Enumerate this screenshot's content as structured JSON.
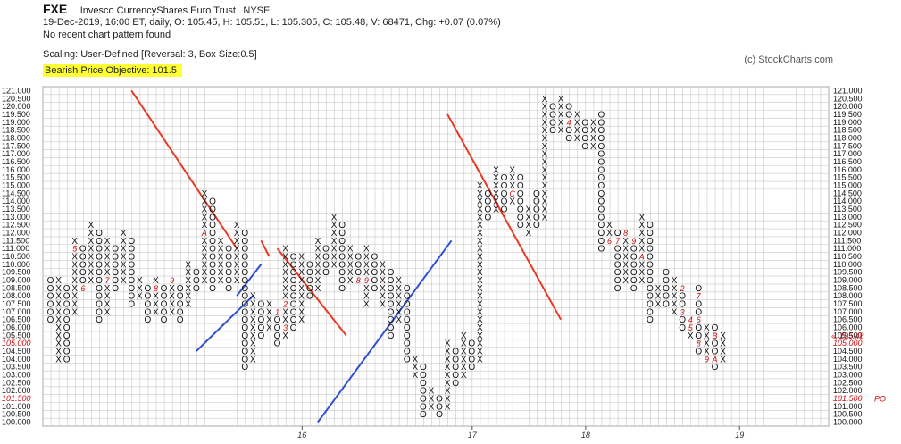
{
  "header": {
    "symbol": "FXE",
    "company": "Invesco CurrencyShares Euro Trust",
    "exchange": "NYSE",
    "quote_line": "19-Dec-2019, 16:00 ET, daily, O: 105.45, H: 105.51, L: 105.305, C: 105.48, V: 68471, Chg: +0.07 (0.07%)",
    "pattern_line": "No recent chart pattern found",
    "scaling_line": "Scaling: User-Defined [Reversal: 3, Box Size:0.5]",
    "objective_line": "Bearish Price Objective: 101.5",
    "copyright": "(c) StockCharts.com"
  },
  "chart_data": {
    "type": "point-and-figure",
    "box_size": 0.5,
    "reversal": 3,
    "ylim": [
      100.0,
      121.0
    ],
    "y_ticks": [
      "121.000",
      "120.500",
      "120.000",
      "119.500",
      "119.000",
      "118.500",
      "118.000",
      "117.500",
      "117.000",
      "116.500",
      "116.000",
      "115.500",
      "115.000",
      "114.500",
      "114.000",
      "113.500",
      "113.000",
      "112.500",
      "112.000",
      "111.500",
      "111.000",
      "110.500",
      "110.000",
      "109.500",
      "109.000",
      "108.500",
      "108.000",
      "107.500",
      "107.000",
      "106.500",
      "106.000",
      "105.500",
      "105.000",
      "104.500",
      "104.000",
      "103.500",
      "103.000",
      "102.500",
      "102.000",
      "101.500",
      "101.000",
      "100.500",
      "100.000"
    ],
    "highlight_ticks": [
      "105.000",
      "101.500"
    ],
    "x_labels": [
      {
        "label": "16",
        "col": 27
      },
      {
        "label": "17",
        "col": 48
      },
      {
        "label": "18",
        "col": 62
      },
      {
        "label": "19",
        "col": 81
      }
    ],
    "columns": [
      {
        "t": "O",
        "high": 109.0,
        "low": 106.5
      },
      {
        "t": "X",
        "high": 109.0,
        "low": 104.0
      },
      {
        "t": "O",
        "high": 108.5,
        "low": 104.0
      },
      {
        "t": "X",
        "high": 111.5,
        "low": 107.0
      },
      {
        "t": "O",
        "high": 111.0,
        "low": 108.5
      },
      {
        "t": "X",
        "high": 112.5,
        "low": 109.0
      },
      {
        "t": "O",
        "high": 112.0,
        "low": 106.5
      },
      {
        "t": "X",
        "high": 111.5,
        "low": 107.0
      },
      {
        "t": "O",
        "high": 111.0,
        "low": 108.5
      },
      {
        "t": "X",
        "high": 112.0,
        "low": 109.0
      },
      {
        "t": "O",
        "high": 111.5,
        "low": 107.5
      },
      {
        "t": "X",
        "high": 109.0,
        "low": 108.0
      },
      {
        "t": "O",
        "high": 108.5,
        "low": 106.5
      },
      {
        "t": "X",
        "high": 109.0,
        "low": 107.0
      },
      {
        "t": "O",
        "high": 108.5,
        "low": 106.5
      },
      {
        "t": "X",
        "high": 109.0,
        "low": 107.0
      },
      {
        "t": "O",
        "high": 108.5,
        "low": 106.5
      },
      {
        "t": "X",
        "high": 110.0,
        "low": 107.5
      },
      {
        "t": "O",
        "high": 109.5,
        "low": 108.5
      },
      {
        "t": "X",
        "high": 114.5,
        "low": 109.0
      },
      {
        "t": "O",
        "high": 114.0,
        "low": 108.5
      },
      {
        "t": "X",
        "high": 111.5,
        "low": 109.0
      },
      {
        "t": "O",
        "high": 111.0,
        "low": 108.5
      },
      {
        "t": "X",
        "high": 112.5,
        "low": 109.0
      },
      {
        "t": "O",
        "high": 112.0,
        "low": 103.5
      },
      {
        "t": "X",
        "high": 108.0,
        "low": 104.0
      },
      {
        "t": "O",
        "high": 107.5,
        "low": 105.5
      },
      {
        "t": "X",
        "high": 107.5,
        "low": 106.0
      },
      {
        "t": "O",
        "high": 107.0,
        "low": 105.0
      },
      {
        "t": "X",
        "high": 111.0,
        "low": 105.5
      },
      {
        "t": "O",
        "high": 110.5,
        "low": 106.0
      },
      {
        "t": "X",
        "high": 110.5,
        "low": 106.5
      },
      {
        "t": "O",
        "high": 110.0,
        "low": 108.0
      },
      {
        "t": "X",
        "high": 111.5,
        "low": 108.5
      },
      {
        "t": "O",
        "high": 111.0,
        "low": 109.5
      },
      {
        "t": "X",
        "high": 113.0,
        "low": 110.0
      },
      {
        "t": "O",
        "high": 112.5,
        "low": 108.5
      },
      {
        "t": "X",
        "high": 111.0,
        "low": 109.0
      },
      {
        "t": "O",
        "high": 110.5,
        "low": 109.0
      },
      {
        "t": "X",
        "high": 111.0,
        "low": 107.5
      },
      {
        "t": "O",
        "high": 110.5,
        "low": 108.5
      },
      {
        "t": "X",
        "high": 110.0,
        "low": 107.5
      },
      {
        "t": "O",
        "high": 109.5,
        "low": 105.5
      },
      {
        "t": "X",
        "high": 109.0,
        "low": 106.5
      },
      {
        "t": "O",
        "high": 108.5,
        "low": 104.0
      },
      {
        "t": "X",
        "high": 104.0,
        "low": 103.0
      },
      {
        "t": "O",
        "high": 103.5,
        "low": 100.5
      },
      {
        "t": "X",
        "high": 102.0,
        "low": 101.0
      },
      {
        "t": "O",
        "high": 101.5,
        "low": 100.5
      },
      {
        "t": "X",
        "high": 105.0,
        "low": 101.0
      },
      {
        "t": "O",
        "high": 104.5,
        "low": 102.5
      },
      {
        "t": "X",
        "high": 105.5,
        "low": 103.0
      },
      {
        "t": "O",
        "high": 105.0,
        "low": 103.5
      },
      {
        "t": "X",
        "high": 115.0,
        "low": 104.0
      },
      {
        "t": "O",
        "high": 114.5,
        "low": 113.0
      },
      {
        "t": "X",
        "high": 116.0,
        "low": 113.5
      },
      {
        "t": "O",
        "high": 115.5,
        "low": 113.5
      },
      {
        "t": "X",
        "high": 116.0,
        "low": 114.0
      },
      {
        "t": "O",
        "high": 115.5,
        "low": 112.5
      },
      {
        "t": "X",
        "high": 113.5,
        "low": 112.0
      },
      {
        "t": "O",
        "high": 114.5,
        "low": 112.5
      },
      {
        "t": "X",
        "high": 120.5,
        "low": 113.0
      },
      {
        "t": "O",
        "high": 120.0,
        "low": 118.5
      },
      {
        "t": "X",
        "high": 120.5,
        "low": 118.5
      },
      {
        "t": "O",
        "high": 120.0,
        "low": 118.0
      },
      {
        "t": "X",
        "high": 119.5,
        "low": 118.0
      },
      {
        "t": "O",
        "high": 119.0,
        "low": 117.5
      },
      {
        "t": "X",
        "high": 119.0,
        "low": 117.5
      },
      {
        "t": "O",
        "high": 119.5,
        "low": 111.0
      },
      {
        "t": "X",
        "high": 112.5,
        "low": 111.5
      },
      {
        "t": "O",
        "high": 112.0,
        "low": 108.5
      },
      {
        "t": "X",
        "high": 112.0,
        "low": 109.0
      },
      {
        "t": "O",
        "high": 111.5,
        "low": 108.5
      },
      {
        "t": "X",
        "high": 113.0,
        "low": 109.0
      },
      {
        "t": "O",
        "high": 112.5,
        "low": 106.5
      },
      {
        "t": "X",
        "high": 108.5,
        "low": 107.5
      },
      {
        "t": "O",
        "high": 109.5,
        "low": 107.5
      },
      {
        "t": "X",
        "high": 109.0,
        "low": 107.0
      },
      {
        "t": "O",
        "high": 108.5,
        "low": 106.0
      },
      {
        "t": "X",
        "high": 106.5,
        "low": 105.5
      },
      {
        "t": "O",
        "high": 108.5,
        "low": 104.5
      },
      {
        "t": "X",
        "high": 106.0,
        "low": 104.0
      },
      {
        "t": "O",
        "high": 106.0,
        "low": 103.5
      },
      {
        "t": "X",
        "high": 105.5,
        "low": 104.0
      }
    ],
    "month_markers": [
      {
        "t": "4",
        "col": 0,
        "price": 106.0
      },
      {
        "t": "5",
        "col": 3,
        "price": 111.0
      },
      {
        "t": "6",
        "col": 4,
        "price": 108.5
      },
      {
        "t": "7",
        "col": 7,
        "price": 109.0
      },
      {
        "t": "8",
        "col": 13,
        "price": 108.5
      },
      {
        "t": "9",
        "col": 15,
        "price": 109.0
      },
      {
        "t": "A",
        "col": 19,
        "price": 112.0
      },
      {
        "t": "B",
        "col": 20,
        "price": 106.5
      },
      {
        "t": "C",
        "col": 20,
        "price": 104.0
      },
      {
        "t": "1",
        "col": 28,
        "price": 107.0
      },
      {
        "t": "2",
        "col": 29,
        "price": 107.5
      },
      {
        "t": "3",
        "col": 29,
        "price": 106.0
      },
      {
        "t": "4",
        "col": 31,
        "price": 111.5
      },
      {
        "t": "5",
        "col": 33,
        "price": 112.0
      },
      {
        "t": "6",
        "col": 34,
        "price": 109.0
      },
      {
        "t": "7",
        "col": 37,
        "price": 107.0
      },
      {
        "t": "8",
        "col": 38,
        "price": 109.0
      },
      {
        "t": "9",
        "col": 39,
        "price": 109.0
      },
      {
        "t": "A",
        "col": 40,
        "price": 108.0
      },
      {
        "t": "B",
        "col": 41,
        "price": 106.5
      },
      {
        "t": "C",
        "col": 43,
        "price": 103.0
      },
      {
        "t": "1",
        "col": 44,
        "price": 102.0
      },
      {
        "t": "2",
        "col": 45,
        "price": 105.0
      },
      {
        "t": "3",
        "col": 46,
        "price": 104.0
      },
      {
        "t": "4",
        "col": 47,
        "price": 103.5
      },
      {
        "t": "5",
        "col": 48,
        "price": 106.5
      },
      {
        "t": "6",
        "col": 48,
        "price": 109.5
      },
      {
        "t": "7",
        "col": 48,
        "price": 110.5
      },
      {
        "t": "8",
        "col": 48,
        "price": 115.0
      },
      {
        "t": "9",
        "col": 52,
        "price": 115.0
      },
      {
        "t": "A",
        "col": 55,
        "price": 113.0
      },
      {
        "t": "B",
        "col": 57,
        "price": 112.5
      },
      {
        "t": "C",
        "col": 57,
        "price": 114.5
      },
      {
        "t": "1",
        "col": 58,
        "price": 116.0
      },
      {
        "t": "2",
        "col": 59,
        "price": 120.0
      },
      {
        "t": "3",
        "col": 63,
        "price": 117.5
      },
      {
        "t": "4",
        "col": 64,
        "price": 119.0
      },
      {
        "t": "5",
        "col": 66,
        "price": 115.0
      },
      {
        "t": "6",
        "col": 69,
        "price": 111.5
      },
      {
        "t": "7",
        "col": 70,
        "price": 111.5
      },
      {
        "t": "8",
        "col": 71,
        "price": 112.0
      },
      {
        "t": "9",
        "col": 72,
        "price": 111.5
      },
      {
        "t": "A",
        "col": 73,
        "price": 110.5
      },
      {
        "t": "B",
        "col": 73,
        "price": 107.5
      },
      {
        "t": "1",
        "col": 75,
        "price": 110.0
      },
      {
        "t": "2",
        "col": 78,
        "price": 108.5
      },
      {
        "t": "3",
        "col": 78,
        "price": 107.0
      },
      {
        "t": "4",
        "col": 79,
        "price": 106.5
      },
      {
        "t": "5",
        "col": 79,
        "price": 106.0
      },
      {
        "t": "6",
        "col": 80,
        "price": 106.5
      },
      {
        "t": "7",
        "col": 80,
        "price": 108.0
      },
      {
        "t": "8",
        "col": 80,
        "price": 105.0
      },
      {
        "t": "9",
        "col": 81,
        "price": 104.0
      },
      {
        "t": "A",
        "col": 82,
        "price": 104.0
      },
      {
        "t": "B",
        "col": 82,
        "price": 105.5
      }
    ],
    "trend_lines": [
      {
        "color": "#e83a22",
        "c0": 10,
        "p0": 121.0,
        "c1": 23,
        "p1": 111.0
      },
      {
        "color": "#e83a22",
        "c0": 26,
        "p0": 111.5,
        "c1": 27,
        "p1": 110.5
      },
      {
        "color": "#e83a22",
        "c0": 28,
        "p0": 111.0,
        "c1": 36.5,
        "p1": 105.5
      },
      {
        "color": "#e83a22",
        "c0": 49,
        "p0": 119.5,
        "c1": 63,
        "p1": 106.5
      },
      {
        "color": "#2f4fd6",
        "c0": 18,
        "p0": 104.5,
        "c1": 25,
        "p1": 108.0
      },
      {
        "color": "#2f4fd6",
        "c0": 23,
        "p0": 108.0,
        "c1": 26,
        "p1": 110.0
      },
      {
        "color": "#2f4fd6",
        "c0": 33,
        "p0": 100.0,
        "c1": 49.5,
        "p1": 111.5
      }
    ],
    "current_price_label": "105.48",
    "po_label": "PO",
    "current_price": 105.5,
    "objective_price": 101.5
  }
}
